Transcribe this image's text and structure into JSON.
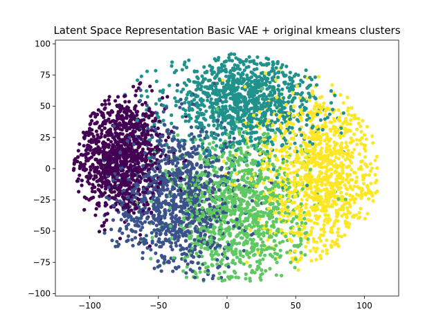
{
  "chart_data": {
    "type": "scatter",
    "title": "Latent Space Representation Basic VAE + original kmeans clusters",
    "xlabel": "",
    "ylabel": "",
    "xlim": [
      -125,
      125
    ],
    "ylim": [
      -102,
      103
    ],
    "x_ticks": [
      -100,
      -50,
      0,
      50,
      100
    ],
    "y_ticks": [
      -100,
      -75,
      -50,
      -25,
      0,
      25,
      50,
      75,
      100
    ],
    "x_tick_labels": [
      "−100",
      "−50",
      "0",
      "50",
      "100"
    ],
    "y_tick_labels": [
      "−100",
      "−75",
      "−50",
      "−25",
      "0",
      "25",
      "50",
      "75",
      "100"
    ],
    "grid": false,
    "legend": "none",
    "point_count_per_cluster": 1100,
    "clusters": [
      {
        "id": 0,
        "color": "#440154",
        "center": [
          -78,
          10
        ],
        "spread": [
          16,
          24
        ]
      },
      {
        "id": 1,
        "color": "#3b528b",
        "center": [
          -38,
          -25
        ],
        "spread": [
          22,
          32
        ]
      },
      {
        "id": 2,
        "color": "#21918c",
        "center": [
          12,
          55
        ],
        "spread": [
          28,
          20
        ]
      },
      {
        "id": 3,
        "color": "#5ec962",
        "center": [
          8,
          -35
        ],
        "spread": [
          24,
          30
        ]
      },
      {
        "id": 4,
        "color": "#fde725",
        "center": [
          68,
          -5
        ],
        "spread": [
          22,
          35
        ]
      }
    ]
  }
}
